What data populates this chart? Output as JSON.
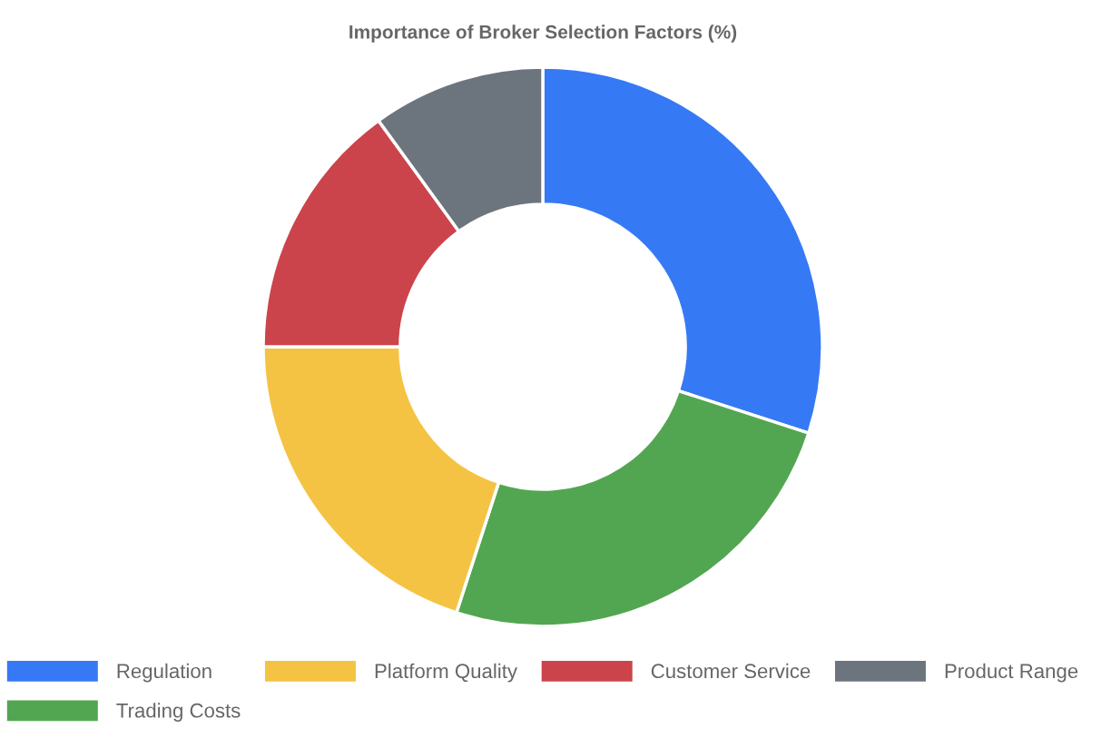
{
  "chart_data": {
    "type": "donut",
    "title": "Importance of Broker Selection Factors (%)",
    "categories": [
      "Regulation",
      "Trading Costs",
      "Platform Quality",
      "Customer Service",
      "Product Range"
    ],
    "values": [
      30,
      25,
      20,
      15,
      10
    ],
    "colors": [
      "#3679f5",
      "#53a651",
      "#f4c343",
      "#cc444b",
      "#6c757d"
    ],
    "legend": "bottom"
  }
}
